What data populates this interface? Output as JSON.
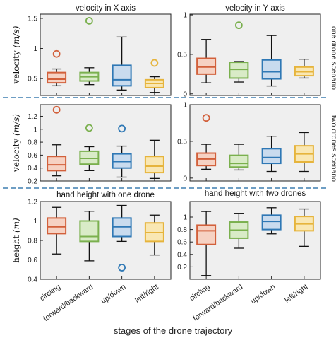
{
  "figure": {
    "xlabel": "stages of the drone trajectory",
    "row_labels": [
      "one drone scenario",
      "two drones scenario"
    ]
  },
  "colors": {
    "circling": {
      "fill": "#f6d2c3",
      "stroke": "#d2603b"
    },
    "forward/backward": {
      "fill": "#d9ebc7",
      "stroke": "#7ab04e"
    },
    "up/down": {
      "fill": "#c9dbee",
      "stroke": "#2f78b5"
    },
    "left/right": {
      "fill": "#f9e7b3",
      "stroke": "#e6b43c"
    }
  },
  "chart_data": [
    {
      "id": "p1",
      "type": "box",
      "title": "velocity in X axis",
      "ylabel_main": "velocity ",
      "ylabel_unit": "(m/s)",
      "categories": [
        "circling",
        "forward/backward",
        "up/down",
        "left/right"
      ],
      "ylim": [
        0.22,
        1.57
      ],
      "yticks": [
        {
          "v": 0.5,
          "label": "0.5"
        },
        {
          "v": 1,
          "label": "1"
        },
        {
          "v": 1.5,
          "label": "1.5"
        }
      ],
      "boxes": [
        {
          "min": 0.38,
          "q1": 0.43,
          "median": 0.49,
          "q3": 0.6,
          "max": 0.66,
          "outliers": [
            0.91
          ]
        },
        {
          "min": 0.4,
          "q1": 0.46,
          "median": 0.53,
          "q3": 0.6,
          "max": 0.68,
          "outliers": [
            1.46
          ]
        },
        {
          "min": 0.31,
          "q1": 0.38,
          "median": 0.48,
          "q3": 0.72,
          "max": 1.19,
          "outliers": []
        },
        {
          "min": 0.27,
          "q1": 0.35,
          "median": 0.42,
          "q3": 0.48,
          "max": 0.53,
          "outliers": [
            0.76
          ]
        }
      ]
    },
    {
      "id": "p2",
      "type": "box",
      "title": "velocity in Y axis",
      "categories": [
        "circling",
        "forward/backward",
        "up/down",
        "left/right"
      ],
      "ylim": [
        -0.02,
        1.01
      ],
      "yticks": [
        {
          "v": 0,
          "label": "0"
        },
        {
          "v": 0.5,
          "label": "0.5"
        },
        {
          "v": 1,
          "label": "1"
        }
      ],
      "boxes": [
        {
          "min": 0.14,
          "q1": 0.25,
          "median": 0.34,
          "q3": 0.45,
          "max": 0.69,
          "outliers": []
        },
        {
          "min": 0.15,
          "q1": 0.2,
          "median": 0.31,
          "q3": 0.4,
          "max": 0.41,
          "outliers": [
            0.87
          ]
        },
        {
          "min": 0.1,
          "q1": 0.19,
          "median": 0.28,
          "q3": 0.43,
          "max": 0.74,
          "outliers": []
        },
        {
          "min": 0.2,
          "q1": 0.23,
          "median": 0.28,
          "q3": 0.34,
          "max": 0.44,
          "outliers": []
        }
      ]
    },
    {
      "id": "p3",
      "type": "box",
      "ylabel_main": "velocity ",
      "ylabel_unit": "(m/s)",
      "categories": [
        "circling",
        "forward/backward",
        "up/down",
        "left/right"
      ],
      "ylim": [
        0.2,
        1.38
      ],
      "yticks": [
        {
          "v": 0.2,
          "label": "0.2"
        },
        {
          "v": 0.4,
          "label": "0.4"
        },
        {
          "v": 0.6,
          "label": "0.6"
        },
        {
          "v": 0.8,
          "label": "0.8"
        },
        {
          "v": 1.0,
          "label": "1"
        },
        {
          "v": 1.2,
          "label": "1.2"
        }
      ],
      "boxes": [
        {
          "min": 0.28,
          "q1": 0.36,
          "median": 0.45,
          "q3": 0.58,
          "max": 0.76,
          "outliers": [
            1.3
          ]
        },
        {
          "min": 0.36,
          "q1": 0.46,
          "median": 0.55,
          "q3": 0.66,
          "max": 0.73,
          "outliers": [
            1.02
          ]
        },
        {
          "min": 0.26,
          "q1": 0.4,
          "median": 0.5,
          "q3": 0.62,
          "max": 0.74,
          "outliers": [
            1.01
          ]
        },
        {
          "min": 0.24,
          "q1": 0.33,
          "median": 0.43,
          "q3": 0.58,
          "max": 0.83,
          "outliers": []
        }
      ]
    },
    {
      "id": "p4",
      "type": "box",
      "categories": [
        "circling",
        "forward/backward",
        "up/down",
        "left/right"
      ],
      "ylim": [
        -0.04,
        1.0
      ],
      "yticks": [
        {
          "v": 0,
          "label": "0"
        },
        {
          "v": 0.5,
          "label": "0.5"
        },
        {
          "v": 1,
          "label": "1"
        }
      ],
      "boxes": [
        {
          "min": 0.12,
          "q1": 0.17,
          "median": 0.26,
          "q3": 0.34,
          "max": 0.46,
          "outliers": [
            0.82
          ]
        },
        {
          "min": 0.11,
          "q1": 0.15,
          "median": 0.2,
          "q3": 0.31,
          "max": 0.46,
          "outliers": []
        },
        {
          "min": 0.09,
          "q1": 0.2,
          "median": 0.28,
          "q3": 0.4,
          "max": 0.57,
          "outliers": []
        },
        {
          "min": 0.09,
          "q1": 0.22,
          "median": 0.33,
          "q3": 0.44,
          "max": 0.62,
          "outliers": []
        }
      ]
    },
    {
      "id": "p5",
      "type": "box",
      "title": "hand height with one drone",
      "ylabel_main": "height ",
      "ylabel_unit": "(m)",
      "categories": [
        "circling",
        "forward/backward",
        "up/down",
        "left/right"
      ],
      "ylim": [
        0.4,
        1.2
      ],
      "yticks": [
        {
          "v": 0.4,
          "label": "0.4"
        },
        {
          "v": 0.6,
          "label": "0.6"
        },
        {
          "v": 0.8,
          "label": "0.8"
        },
        {
          "v": 1.0,
          "label": "1"
        },
        {
          "v": 1.2,
          "label": "1.2"
        }
      ],
      "boxes": [
        {
          "min": 0.66,
          "q1": 0.87,
          "median": 0.94,
          "q3": 1.03,
          "max": 1.14,
          "outliers": []
        },
        {
          "min": 0.59,
          "q1": 0.79,
          "median": 0.84,
          "q3": 1.0,
          "max": 1.1,
          "outliers": []
        },
        {
          "min": 0.79,
          "q1": 0.84,
          "median": 0.94,
          "q3": 1.03,
          "max": 1.16,
          "outliers": [
            0.52
          ]
        },
        {
          "min": 0.65,
          "q1": 0.79,
          "median": 0.88,
          "q3": 0.98,
          "max": 1.06,
          "outliers": []
        }
      ]
    },
    {
      "id": "p6",
      "type": "box",
      "title": "hand height with two drones",
      "categories": [
        "circling",
        "forward/backward",
        "up/down",
        "left/right"
      ],
      "ylim": [
        0.0,
        1.25
      ],
      "yticks": [
        {
          "v": 0.2,
          "label": "0.2"
        },
        {
          "v": 0.4,
          "label": "0.4"
        },
        {
          "v": 0.6,
          "label": "0.6"
        },
        {
          "v": 0.8,
          "label": "0.8"
        },
        {
          "v": 1.0,
          "label": "1"
        }
      ],
      "boxes": [
        {
          "min": 0.06,
          "q1": 0.56,
          "median": 0.78,
          "q3": 0.87,
          "max": 1.09,
          "outliers": []
        },
        {
          "min": 0.5,
          "q1": 0.66,
          "median": 0.79,
          "q3": 0.92,
          "max": 1.06,
          "outliers": []
        },
        {
          "min": 0.73,
          "q1": 0.8,
          "median": 0.93,
          "q3": 1.03,
          "max": 1.15,
          "outliers": []
        },
        {
          "min": 0.53,
          "q1": 0.78,
          "median": 0.89,
          "q3": 1.01,
          "max": 1.13,
          "outliers": []
        }
      ]
    }
  ]
}
